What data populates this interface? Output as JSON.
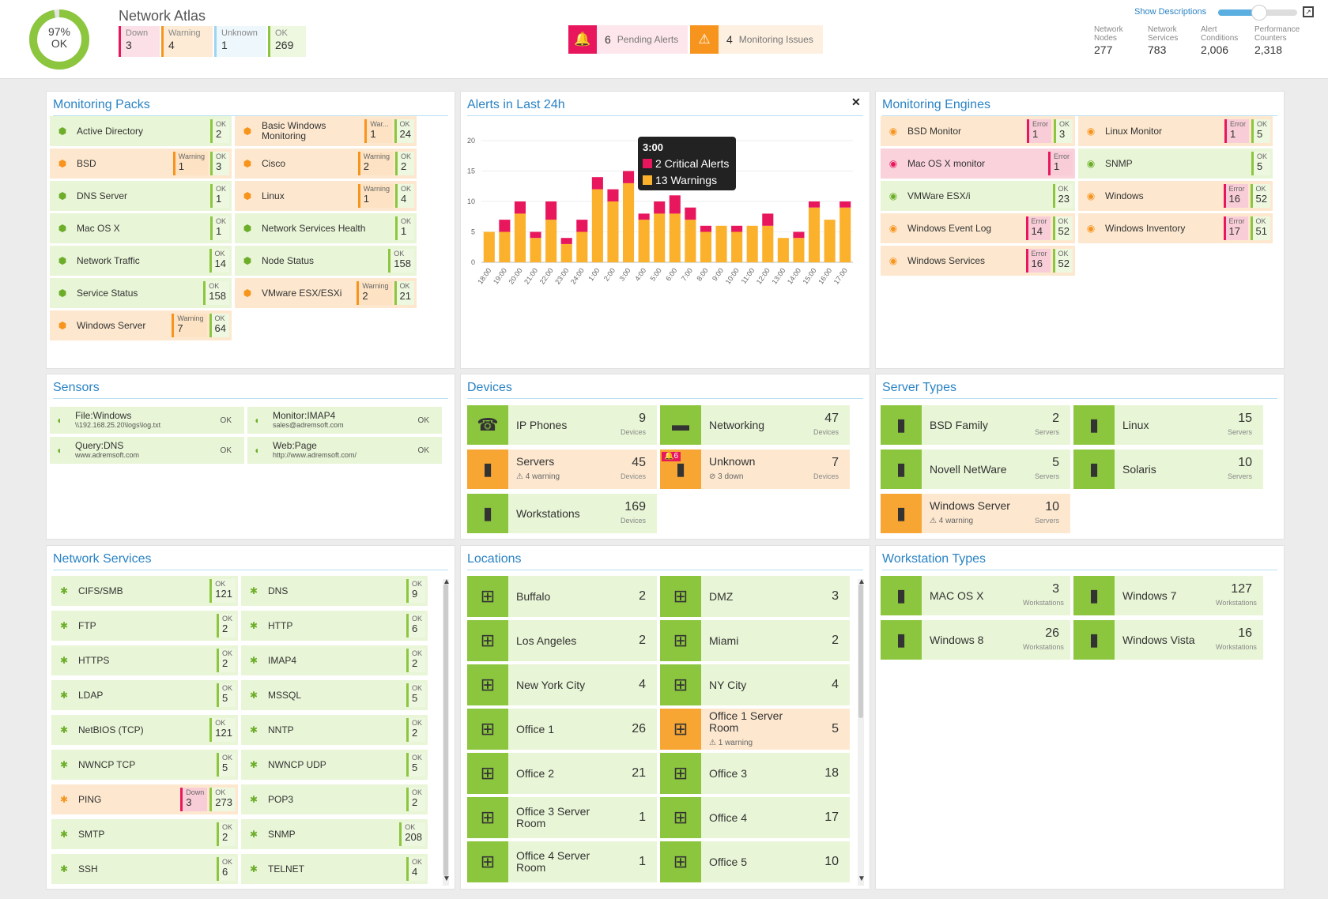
{
  "header": {
    "title": "Network Atlas",
    "donut": {
      "percent": "97%",
      "label": "OK",
      "fraction": 0.97
    },
    "status": [
      {
        "label": "Down",
        "value": "3"
      },
      {
        "label": "Warning",
        "value": "4"
      },
      {
        "label": "Unknown",
        "value": "1"
      },
      {
        "label": "OK",
        "value": "269"
      }
    ],
    "alerts": {
      "count": "6",
      "label": "Pending Alerts"
    },
    "issues": {
      "count": "4",
      "label": "Monitoring Issues"
    },
    "show_descriptions": "Show Descriptions",
    "stats": [
      {
        "label": "Network Nodes",
        "value": "277"
      },
      {
        "label": "Network Services",
        "value": "783"
      },
      {
        "label": "Alert Conditions",
        "value": "2,006"
      },
      {
        "label": "Performance Counters",
        "value": "2,318"
      }
    ]
  },
  "panels": {
    "monitoring_packs": "Monitoring Packs",
    "alerts": "Alerts in Last 24h",
    "engines": "Monitoring Engines",
    "sensors": "Sensors",
    "devices": "Devices",
    "server_types": "Server Types",
    "network_services": "Network Services",
    "locations": "Locations",
    "workstation_types": "Workstation Types"
  },
  "monitoring_packs": [
    {
      "name": "Active Directory",
      "status": "ok",
      "boxes": [
        [
          "ok",
          "OK",
          "2"
        ]
      ]
    },
    {
      "name": "Basic Windows Monitoring",
      "status": "warn",
      "boxes": [
        [
          "warn",
          "War...",
          "1"
        ],
        [
          "ok",
          "OK",
          "24"
        ]
      ]
    },
    {
      "name": "BSD",
      "status": "warn",
      "boxes": [
        [
          "warn",
          "Warning",
          "1"
        ],
        [
          "ok",
          "OK",
          "3"
        ]
      ]
    },
    {
      "name": "Cisco",
      "status": "warn",
      "boxes": [
        [
          "warn",
          "Warning",
          "2"
        ],
        [
          "ok",
          "OK",
          "2"
        ]
      ]
    },
    {
      "name": "DNS Server",
      "status": "ok",
      "boxes": [
        [
          "ok",
          "OK",
          "1"
        ]
      ]
    },
    {
      "name": "Linux",
      "status": "warn",
      "boxes": [
        [
          "warn",
          "Warning",
          "1"
        ],
        [
          "ok",
          "OK",
          "4"
        ]
      ]
    },
    {
      "name": "Mac OS X",
      "status": "ok",
      "boxes": [
        [
          "ok",
          "OK",
          "1"
        ]
      ]
    },
    {
      "name": "Network Services Health",
      "status": "ok",
      "boxes": [
        [
          "ok",
          "OK",
          "1"
        ]
      ]
    },
    {
      "name": "Network Traffic",
      "status": "ok",
      "boxes": [
        [
          "ok",
          "OK",
          "14"
        ]
      ]
    },
    {
      "name": "Node Status",
      "status": "ok",
      "boxes": [
        [
          "ok",
          "OK",
          "158"
        ]
      ]
    },
    {
      "name": "Service Status",
      "status": "ok",
      "boxes": [
        [
          "ok",
          "OK",
          "158"
        ]
      ]
    },
    {
      "name": "VMware ESX/ESXi",
      "status": "warn",
      "boxes": [
        [
          "warn",
          "Warning",
          "2"
        ],
        [
          "ok",
          "OK",
          "21"
        ]
      ]
    },
    {
      "name": "Windows Server",
      "status": "warn",
      "boxes": [
        [
          "warn",
          "Warning",
          "7"
        ],
        [
          "ok",
          "OK",
          "64"
        ]
      ]
    }
  ],
  "engines": [
    {
      "name": "BSD Monitor",
      "status": "warn",
      "boxes": [
        [
          "err",
          "Error",
          "1"
        ],
        [
          "ok",
          "OK",
          "3"
        ]
      ]
    },
    {
      "name": "Linux Monitor",
      "status": "warn",
      "boxes": [
        [
          "err",
          "Error",
          "1"
        ],
        [
          "ok",
          "OK",
          "5"
        ]
      ]
    },
    {
      "name": "Mac OS X monitor",
      "status": "down",
      "boxes": [
        [
          "err",
          "Error",
          "1"
        ]
      ]
    },
    {
      "name": "SNMP",
      "status": "ok",
      "boxes": [
        [
          "ok",
          "OK",
          "5"
        ]
      ]
    },
    {
      "name": "VMWare ESX/i",
      "status": "ok",
      "boxes": [
        [
          "ok",
          "OK",
          "23"
        ]
      ]
    },
    {
      "name": "Windows",
      "status": "warn",
      "boxes": [
        [
          "err",
          "Error",
          "16"
        ],
        [
          "ok",
          "OK",
          "52"
        ]
      ]
    },
    {
      "name": "Windows Event Log",
      "status": "warn",
      "boxes": [
        [
          "err",
          "Error",
          "14"
        ],
        [
          "ok",
          "OK",
          "52"
        ]
      ]
    },
    {
      "name": "Windows Inventory",
      "status": "warn",
      "boxes": [
        [
          "err",
          "Error",
          "17"
        ],
        [
          "ok",
          "OK",
          "51"
        ]
      ]
    },
    {
      "name": "Windows Services",
      "status": "warn",
      "boxes": [
        [
          "err",
          "Error",
          "16"
        ],
        [
          "ok",
          "OK",
          "52"
        ]
      ]
    }
  ],
  "sensors": [
    {
      "name": "File:Windows",
      "sub": "\\\\192.168.25.20\\logs\\log.txt",
      "status": "OK"
    },
    {
      "name": "Monitor:IMAP4",
      "sub": "sales@adremsoft.com",
      "status": "OK"
    },
    {
      "name": "Query:DNS",
      "sub": "www.adremsoft.com",
      "status": "OK"
    },
    {
      "name": "Web:Page",
      "sub": "http://www.adremsoft.com/",
      "status": "OK"
    }
  ],
  "devices": [
    {
      "name": "IP Phones",
      "count": "9",
      "unit": "Devices",
      "status": "ok",
      "icon": "phone-icon",
      "glyph": "☎"
    },
    {
      "name": "Networking",
      "count": "47",
      "unit": "Devices",
      "status": "ok",
      "icon": "switch-icon",
      "glyph": "▬"
    },
    {
      "name": "Servers",
      "count": "45",
      "unit": "Devices",
      "status": "warn",
      "note": "⚠ 4 warning",
      "icon": "server-icon",
      "glyph": "▮"
    },
    {
      "name": "Unknown",
      "count": "7",
      "unit": "Devices",
      "status": "warn",
      "note": "⊘ 3 down",
      "badge": "6",
      "icon": "unknown-device-icon",
      "glyph": "▮"
    },
    {
      "name": "Workstations",
      "count": "169",
      "unit": "Devices",
      "status": "ok",
      "icon": "workstation-icon",
      "glyph": "▮"
    }
  ],
  "server_types": [
    {
      "name": "BSD Family",
      "count": "2",
      "unit": "Servers",
      "status": "ok",
      "glyph": "▮"
    },
    {
      "name": "Linux",
      "count": "15",
      "unit": "Servers",
      "status": "ok",
      "glyph": "▮"
    },
    {
      "name": "Novell NetWare",
      "count": "5",
      "unit": "Servers",
      "status": "ok",
      "glyph": "▮"
    },
    {
      "name": "Solaris",
      "count": "10",
      "unit": "Servers",
      "status": "ok",
      "glyph": "▮"
    },
    {
      "name": "Windows Server",
      "count": "10",
      "unit": "Servers",
      "status": "warn",
      "note": "⚠ 4 warning",
      "glyph": "▮"
    }
  ],
  "network_services": [
    {
      "name": "CIFS/SMB",
      "status": "ok",
      "boxes": [
        [
          "ok",
          "OK",
          "121"
        ]
      ]
    },
    {
      "name": "DNS",
      "status": "ok",
      "boxes": [
        [
          "ok",
          "OK",
          "9"
        ]
      ]
    },
    {
      "name": "FTP",
      "status": "ok",
      "boxes": [
        [
          "ok",
          "OK",
          "2"
        ]
      ]
    },
    {
      "name": "HTTP",
      "status": "ok",
      "boxes": [
        [
          "ok",
          "OK",
          "6"
        ]
      ]
    },
    {
      "name": "HTTPS",
      "status": "ok",
      "boxes": [
        [
          "ok",
          "OK",
          "2"
        ]
      ]
    },
    {
      "name": "IMAP4",
      "status": "ok",
      "boxes": [
        [
          "ok",
          "OK",
          "2"
        ]
      ]
    },
    {
      "name": "LDAP",
      "status": "ok",
      "boxes": [
        [
          "ok",
          "OK",
          "5"
        ]
      ]
    },
    {
      "name": "MSSQL",
      "status": "ok",
      "boxes": [
        [
          "ok",
          "OK",
          "5"
        ]
      ]
    },
    {
      "name": "NetBIOS (TCP)",
      "status": "ok",
      "boxes": [
        [
          "ok",
          "OK",
          "121"
        ]
      ]
    },
    {
      "name": "NNTP",
      "status": "ok",
      "boxes": [
        [
          "ok",
          "OK",
          "2"
        ]
      ]
    },
    {
      "name": "NWNCP TCP",
      "status": "ok",
      "boxes": [
        [
          "ok",
          "OK",
          "5"
        ]
      ]
    },
    {
      "name": "NWNCP UDP",
      "status": "ok",
      "boxes": [
        [
          "ok",
          "OK",
          "5"
        ]
      ]
    },
    {
      "name": "PING",
      "status": "warn",
      "boxes": [
        [
          "down",
          "Down",
          "3"
        ],
        [
          "ok",
          "OK",
          "273"
        ]
      ]
    },
    {
      "name": "POP3",
      "status": "ok",
      "boxes": [
        [
          "ok",
          "OK",
          "2"
        ]
      ]
    },
    {
      "name": "SMTP",
      "status": "ok",
      "boxes": [
        [
          "ok",
          "OK",
          "2"
        ]
      ]
    },
    {
      "name": "SNMP",
      "status": "ok",
      "boxes": [
        [
          "ok",
          "OK",
          "208"
        ]
      ]
    },
    {
      "name": "SSH",
      "status": "ok",
      "boxes": [
        [
          "ok",
          "OK",
          "6"
        ]
      ]
    },
    {
      "name": "TELNET",
      "status": "ok",
      "boxes": [
        [
          "ok",
          "OK",
          "4"
        ]
      ]
    }
  ],
  "locations": [
    {
      "name": "Buffalo",
      "count": "2",
      "status": "ok"
    },
    {
      "name": "DMZ",
      "count": "3",
      "status": "ok"
    },
    {
      "name": "Los Angeles",
      "count": "2",
      "status": "ok"
    },
    {
      "name": "Miami",
      "count": "2",
      "status": "ok"
    },
    {
      "name": "New York City",
      "count": "4",
      "status": "ok"
    },
    {
      "name": "NY City",
      "count": "4",
      "status": "ok"
    },
    {
      "name": "Office 1",
      "count": "26",
      "status": "ok"
    },
    {
      "name": "Office 1 Server Room",
      "count": "5",
      "status": "warn",
      "note": "⚠ 1 warning"
    },
    {
      "name": "Office 2",
      "count": "21",
      "status": "ok"
    },
    {
      "name": "Office 3",
      "count": "18",
      "status": "ok"
    },
    {
      "name": "Office 3 Server Room",
      "count": "1",
      "status": "ok"
    },
    {
      "name": "Office 4",
      "count": "17",
      "status": "ok"
    },
    {
      "name": "Office 4 Server Room",
      "count": "1",
      "status": "ok"
    },
    {
      "name": "Office 5",
      "count": "10",
      "status": "ok"
    }
  ],
  "workstation_types": [
    {
      "name": "MAC OS X",
      "count": "3",
      "unit": "Workstations",
      "glyph": "▮"
    },
    {
      "name": "Windows 7",
      "count": "127",
      "unit": "Workstations",
      "glyph": "▮"
    },
    {
      "name": "Windows 8",
      "count": "26",
      "unit": "Workstations",
      "glyph": "▮"
    },
    {
      "name": "Windows Vista",
      "count": "16",
      "unit": "Workstations",
      "glyph": "▮"
    }
  ],
  "tooltip": {
    "time": "3:00",
    "critical": "2 Critical Alerts",
    "warnings": "13 Warnings"
  },
  "colors": {
    "ok": "#8cc63f",
    "warning": "#f7941d",
    "critical": "#e8175d",
    "unknown": "#9fd3f0",
    "accent": "#2a83c4"
  },
  "chart_data": {
    "type": "bar",
    "stacked": true,
    "categories": [
      "18:00",
      "19:00",
      "20:00",
      "21:00",
      "22:00",
      "23:00",
      "24:00",
      "1:00",
      "2:00",
      "3:00",
      "4:00",
      "5:00",
      "6:00",
      "7:00",
      "8:00",
      "9:00",
      "10:00",
      "11:00",
      "12:00",
      "13:00",
      "14:00",
      "15:00",
      "16:00",
      "17:00"
    ],
    "series": [
      {
        "name": "Warnings",
        "values": [
          5,
          5,
          8,
          4,
          7,
          3,
          5,
          12,
          10,
          13,
          7,
          8,
          8,
          7,
          5,
          6,
          5,
          6,
          6,
          4,
          4,
          9,
          7,
          9
        ]
      },
      {
        "name": "Critical Alerts",
        "values": [
          0,
          2,
          2,
          1,
          3,
          1,
          2,
          2,
          2,
          2,
          1,
          2,
          3,
          2,
          1,
          0,
          1,
          0,
          2,
          0,
          1,
          1,
          0,
          1
        ]
      }
    ],
    "y_ticks": [
      "0",
      "5",
      "10",
      "15",
      "20"
    ],
    "ylim": [
      0,
      20
    ]
  }
}
